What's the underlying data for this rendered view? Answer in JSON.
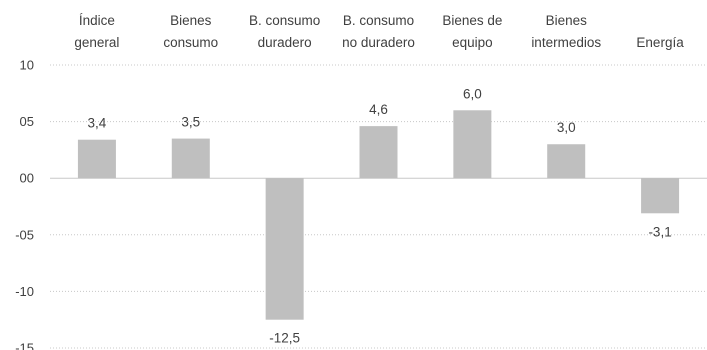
{
  "chart_data": {
    "type": "bar",
    "categories": [
      [
        "Índice",
        "general"
      ],
      [
        "Bienes",
        "consumo"
      ],
      [
        "B. consumo",
        "duradero"
      ],
      [
        "B. consumo",
        "no duradero"
      ],
      [
        "Bienes de",
        "equipo"
      ],
      [
        "Bienes",
        "intermedios"
      ],
      [
        "Energía"
      ]
    ],
    "values": [
      3.4,
      3.5,
      -12.5,
      4.6,
      6.0,
      3.0,
      -3.1
    ],
    "data_labels": [
      "3,4",
      "3,5",
      "-12,5",
      "4,6",
      "6,0",
      "3,0",
      "-3,1"
    ],
    "ylim": [
      -15,
      10
    ],
    "yticks": [
      10,
      5,
      0,
      -5,
      -10,
      -15
    ],
    "ytick_labels": [
      "10",
      "05",
      "00",
      "-05",
      "-10",
      "-15"
    ],
    "title": "",
    "xlabel": "",
    "ylabel": "",
    "grid": true,
    "legend": "none",
    "bar_color": "#bfbfbf"
  }
}
